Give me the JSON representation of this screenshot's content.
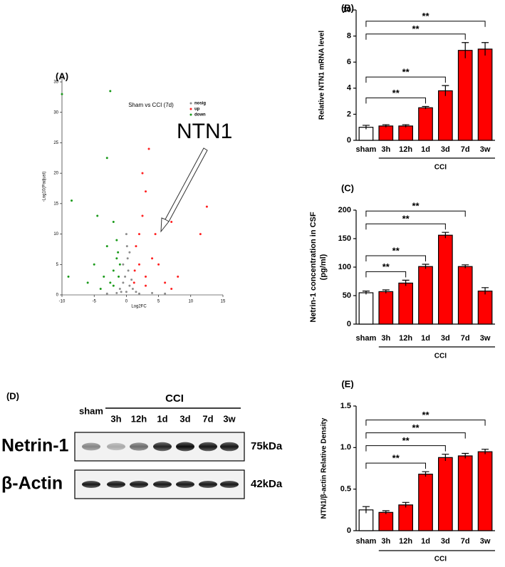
{
  "chart_data": [
    {
      "type": "scatter",
      "panel_label": "(A)",
      "title": "Sham vs CCI (7d)",
      "x_label": "Log2FC",
      "y_label": "-Log10(Padjust)",
      "annotation": "NTN1",
      "xlim": [
        -10,
        15
      ],
      "xticks": [
        -10,
        -5,
        0,
        5,
        10,
        15
      ],
      "ylim": [
        0,
        35
      ],
      "yticks": [
        0,
        5,
        10,
        15,
        20,
        25,
        30,
        35
      ],
      "series": [
        {
          "name": "nosig",
          "color": "#8c8c8c",
          "x": [
            0,
            0.5,
            -0.5,
            0.3,
            -0.2,
            1,
            -1,
            0.8,
            -0.8,
            0.2,
            0,
            0.5,
            -0.5,
            1.5,
            -1.5,
            2,
            4,
            6,
            -3,
            0.1
          ],
          "y": [
            0.5,
            1.5,
            2,
            4,
            3,
            1,
            1,
            2.5,
            0.5,
            6,
            10,
            7,
            5,
            0.5,
            0.3,
            0.2,
            0.3,
            0.2,
            0.2,
            8
          ]
        },
        {
          "name": "up",
          "color": "#ff2020",
          "x": [
            3.5,
            2.5,
            12.5,
            11.5,
            7,
            3,
            2,
            4,
            1.5,
            2,
            5,
            3,
            6,
            1.3,
            2.5,
            4.5,
            8,
            3,
            7,
            1.2
          ],
          "y": [
            24,
            20,
            14.5,
            10,
            12,
            17,
            10,
            6,
            8,
            5,
            5,
            3,
            2,
            4,
            13,
            10,
            3,
            1.5,
            1,
            2
          ]
        },
        {
          "name": "down",
          "color": "#1a9a1a",
          "x": [
            -2.5,
            -10,
            -8.5,
            -3,
            -4.5,
            -2,
            -3,
            -5,
            -1.5,
            -2,
            -1.2,
            -2.5,
            -3.5,
            -1.5,
            -6,
            -9,
            -1,
            -2,
            -4,
            -1.3
          ],
          "y": [
            33.5,
            33,
            15.5,
            22.5,
            13,
            12,
            8,
            5,
            6,
            4,
            3,
            2,
            3,
            9,
            2,
            3,
            5,
            1.5,
            1,
            7
          ]
        }
      ]
    },
    {
      "type": "bar",
      "panel_label": "(B)",
      "y_label": "Relative NTN1 mRNA level",
      "group_label": "CCI",
      "categories": [
        "sham",
        "3h",
        "12h",
        "1d",
        "3d",
        "7d",
        "3w"
      ],
      "values": [
        1.0,
        1.1,
        1.1,
        2.5,
        3.8,
        6.9,
        7.0
      ],
      "errors": [
        0.15,
        0.1,
        0.1,
        0.1,
        0.4,
        0.6,
        0.5
      ],
      "colors": [
        "#ffffff",
        "#ff0000",
        "#ff0000",
        "#ff0000",
        "#ff0000",
        "#ff0000",
        "#ff0000"
      ],
      "ylim": [
        0,
        10
      ],
      "yticks": [
        0,
        2,
        4,
        6,
        8,
        10
      ],
      "annotations": [
        {
          "between": [
            "sham",
            "1d"
          ],
          "label": "**"
        },
        {
          "between": [
            "sham",
            "3d"
          ],
          "label": "**"
        },
        {
          "between": [
            "sham",
            "7d"
          ],
          "label": "**"
        },
        {
          "between": [
            "sham",
            "3w"
          ],
          "label": "**"
        }
      ]
    },
    {
      "type": "bar",
      "panel_label": "(C)",
      "y_label": [
        "Netrin-1 concentration in CSF",
        "(pg/ml)"
      ],
      "group_label": "CCI",
      "categories": [
        "sham",
        "3h",
        "12h",
        "1d",
        "3d",
        "7d",
        "3w"
      ],
      "values": [
        55,
        57,
        72,
        101,
        156,
        101,
        58
      ],
      "errors": [
        3,
        3,
        5,
        4,
        5,
        3,
        6
      ],
      "colors": [
        "#ffffff",
        "#ff0000",
        "#ff0000",
        "#ff0000",
        "#ff0000",
        "#ff0000",
        "#ff0000"
      ],
      "ylim": [
        0,
        200
      ],
      "yticks": [
        0,
        50,
        100,
        150,
        200
      ],
      "annotations": [
        {
          "between": [
            "sham",
            "12h"
          ],
          "label": "**"
        },
        {
          "between": [
            "sham",
            "1d"
          ],
          "label": "**"
        },
        {
          "between": [
            "sham",
            "3d"
          ],
          "label": "**"
        },
        {
          "between": [
            "sham",
            "7d"
          ],
          "label": "**"
        }
      ]
    },
    {
      "type": "bar",
      "panel_label": "(E)",
      "y_label": "NTN1/β-actin Relative Density",
      "group_label": "CCI",
      "categories": [
        "sham",
        "3h",
        "12h",
        "1d",
        "3d",
        "7d",
        "3w"
      ],
      "values": [
        0.25,
        0.22,
        0.31,
        0.68,
        0.88,
        0.9,
        0.95
      ],
      "errors": [
        0.04,
        0.02,
        0.03,
        0.03,
        0.04,
        0.03,
        0.03
      ],
      "colors": [
        "#ffffff",
        "#ff0000",
        "#ff0000",
        "#ff0000",
        "#ff0000",
        "#ff0000",
        "#ff0000"
      ],
      "ylim": [
        0,
        1.5
      ],
      "yticks": [
        0,
        0.5,
        {
          "value": 1,
          "label": "1.0"
        },
        1.5
      ],
      "annotations": [
        {
          "between": [
            "sham",
            "1d"
          ],
          "label": "**"
        },
        {
          "between": [
            "sham",
            "3d"
          ],
          "label": "**"
        },
        {
          "between": [
            "sham",
            "7d"
          ],
          "label": "**"
        },
        {
          "between": [
            "sham",
            "3w"
          ],
          "label": "**"
        }
      ]
    }
  ],
  "blot": {
    "panel_label": "(D)",
    "lanes": [
      "sham",
      "3h",
      "12h",
      "1d",
      "3d",
      "7d",
      "3w"
    ],
    "group_label": "CCI",
    "rows": [
      {
        "label": "Netrin-1",
        "size": "75kDa"
      },
      {
        "label": "β-Actin",
        "size": "42kDa"
      }
    ]
  }
}
